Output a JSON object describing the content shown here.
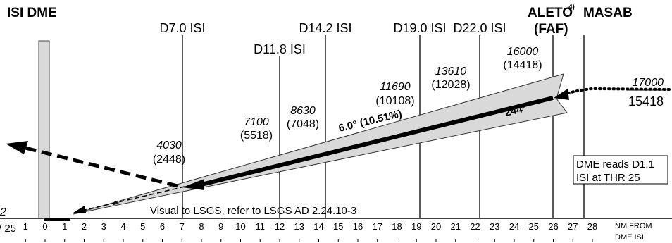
{
  "header": {
    "dme_station": "ISI DME",
    "aleto": "ALETO",
    "aleto_note": "4)",
    "faf": "(FAF)",
    "masab": "MASAB"
  },
  "fixes": [
    {
      "label": "D7.0 ISI",
      "nm": 7
    },
    {
      "label": "D11.8 ISI",
      "nm": 11.8
    },
    {
      "label": "D14.2 ISI",
      "nm": 14.2
    },
    {
      "label": "D19.0 ISI",
      "nm": 19
    },
    {
      "label": "D22.0 ISI",
      "nm": 22
    },
    {
      "label": "",
      "nm": 25.8
    },
    {
      "label": "",
      "nm": 27.1
    }
  ],
  "altitudes": [
    {
      "alt": "4030",
      "height": "(2448)"
    },
    {
      "alt": "7100",
      "height": "(5518)"
    },
    {
      "alt": "8630",
      "height": "(7048)"
    },
    {
      "alt": "11690",
      "height": "(10108)"
    },
    {
      "alt": "13610",
      "height": "(12028)"
    },
    {
      "alt": "16000",
      "height": "(14418)"
    }
  ],
  "descent_gradient": "6.0° (10.51%)",
  "track": "244°",
  "initial": {
    "alt": "17000",
    "height": "15418"
  },
  "dme_note": {
    "line1": "DME reads D1.1",
    "line2": "ISI at THR 25"
  },
  "visual_note": "Visual to LSGS, refer to LSGS AD 2.24.10-3",
  "runway": {
    "label_top": "2",
    "label_bottom": "/ 25"
  },
  "axis": {
    "ticks": [
      "1",
      "0",
      "1",
      "2",
      "3",
      "4",
      "5",
      "6",
      "7",
      "8",
      "9",
      "10",
      "11",
      "12",
      "13",
      "14",
      "15",
      "16",
      "17",
      "18",
      "19",
      "20",
      "21",
      "22",
      "23",
      "24",
      "25",
      "26",
      "27",
      "28"
    ],
    "unit_line1": "NM FROM",
    "unit_line2": "DME ISI"
  }
}
